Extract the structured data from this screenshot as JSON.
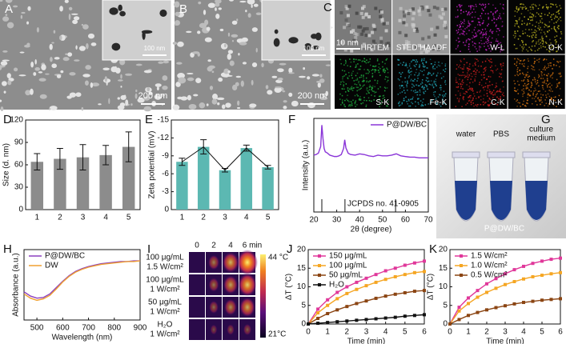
{
  "chart_data": [
    {
      "type": "bar",
      "panel": "D",
      "ylabel": "Size (d. nm)",
      "categories": [
        "1",
        "2",
        "3",
        "4",
        "5"
      ],
      "values": [
        64,
        68,
        70,
        73,
        84
      ],
      "errors": [
        11,
        14,
        17,
        13,
        20
      ],
      "color": "#8c8c8c",
      "ylim": [
        0,
        120
      ],
      "yticks": [
        0,
        30,
        60,
        90,
        120
      ]
    },
    {
      "type": "bar",
      "panel": "E",
      "ylabel": "Zeta potential (mV)",
      "categories": [
        "1",
        "2",
        "3",
        "4",
        "5"
      ],
      "values": [
        -8.0,
        -10.5,
        -6.6,
        -10.3,
        -7.1
      ],
      "errors": [
        0.6,
        1.2,
        0.3,
        0.5,
        0.3
      ],
      "color": "#5cb8b2",
      "connect": true,
      "ylim": [
        0,
        -15
      ],
      "yticks": [
        0,
        -3,
        -6,
        -9,
        -12,
        -15
      ]
    },
    {
      "type": "line",
      "panel": "F",
      "ylabel": "Intensity (a.u.)",
      "xlabel": "2θ (degree)",
      "x": [
        20,
        21,
        22,
        23,
        23.5,
        24,
        24.5,
        25,
        26,
        27,
        28,
        29,
        30,
        31,
        32,
        33,
        33.5,
        34,
        35,
        36,
        38,
        40,
        42,
        44,
        46,
        48,
        50,
        52,
        54,
        56,
        58,
        60,
        62,
        64,
        66,
        68,
        70
      ],
      "series": [
        {
          "name": "P@DW/BC",
          "color": "#8a35d8",
          "values": [
            45,
            46,
            48,
            58,
            90,
            70,
            55,
            50,
            48,
            45,
            44,
            43,
            43,
            44,
            46,
            55,
            68,
            56,
            48,
            46,
            45,
            47,
            46,
            44,
            43,
            45,
            44,
            44,
            45,
            47,
            44,
            43,
            42,
            42,
            41,
            41,
            41
          ]
        }
      ],
      "reference": {
        "label": "JCPDS no. 41-0905",
        "x": [
          23.5,
          33.6,
          55.7
        ]
      },
      "xlim": [
        20,
        70
      ],
      "xticks": [
        20,
        30,
        40,
        50,
        60,
        70
      ],
      "ylim": [
        -40,
        100
      ]
    },
    {
      "type": "line",
      "panel": "H",
      "ylabel": "Absorbance (a.u.)",
      "xlabel": "Wavelength (nm)",
      "x": [
        450,
        475,
        500,
        525,
        550,
        575,
        600,
        625,
        650,
        675,
        700,
        725,
        750,
        775,
        800,
        825,
        850,
        875,
        900
      ],
      "series": [
        {
          "name": "P@DW/BC",
          "color": "#8b3fbf",
          "values": [
            40,
            34,
            31,
            32,
            37,
            46,
            55,
            63,
            69,
            73,
            76,
            78,
            80,
            81,
            82,
            83,
            83,
            84,
            84
          ]
        },
        {
          "name": "DW",
          "color": "#f0a030",
          "values": [
            37,
            31,
            28,
            30,
            35,
            44,
            54,
            62,
            68,
            72,
            75,
            77,
            79,
            80,
            81,
            82,
            83,
            83,
            84
          ]
        }
      ],
      "xlim": [
        450,
        900
      ],
      "xticks": [
        500,
        600,
        700,
        800,
        900
      ],
      "ylim": [
        0,
        100
      ]
    },
    {
      "type": "line",
      "panel": "J",
      "ylabel": "ΔT (°C)",
      "xlabel": "Time (min)",
      "markers": true,
      "x": [
        0,
        0.5,
        1,
        1.5,
        2,
        2.5,
        3,
        3.5,
        4,
        4.5,
        5,
        5.5,
        6
      ],
      "series": [
        {
          "name": "150 μg/mL",
          "color": "#e0389a",
          "values": [
            0,
            4,
            6.5,
            8.5,
            10,
            11.2,
            12.3,
            13.3,
            14.3,
            15,
            15.8,
            16.4,
            16.9
          ]
        },
        {
          "name": "100 μg/mL",
          "color": "#f5a623",
          "values": [
            0,
            3,
            5,
            6.8,
            8.2,
            9.3,
            10.3,
            11.2,
            12,
            12.7,
            13.3,
            13.8,
            14.1
          ]
        },
        {
          "name": "50 μg/mL",
          "color": "#8b4513",
          "values": [
            0,
            1.5,
            2.8,
            3.8,
            4.7,
            5.5,
            6.2,
            6.9,
            7.5,
            8,
            8.4,
            8.8,
            9
          ]
        },
        {
          "name": "H₂O",
          "color": "#111111",
          "values": [
            0,
            0.2,
            0.4,
            0.6,
            0.8,
            1,
            1.2,
            1.4,
            1.6,
            1.8,
            2.1,
            2.3,
            2.5
          ]
        }
      ],
      "xlim": [
        0,
        6
      ],
      "xticks": [
        0,
        1,
        2,
        3,
        4,
        5,
        6
      ],
      "ylim": [
        0,
        20
      ],
      "yticks": [
        0,
        5,
        10,
        15,
        20
      ]
    },
    {
      "type": "line",
      "panel": "K",
      "ylabel": "ΔT (°C)",
      "xlabel": "Time (min)",
      "markers": true,
      "x": [
        0,
        0.5,
        1,
        1.5,
        2,
        2.5,
        3,
        3.5,
        4,
        4.5,
        5,
        5.5,
        6
      ],
      "series": [
        {
          "name": "1.5 W/cm²",
          "color": "#e0389a",
          "values": [
            0,
            4.5,
            7,
            9,
            10.8,
            12.2,
            13.5,
            14.6,
            15.5,
            16.3,
            16.9,
            17.4,
            17.7
          ]
        },
        {
          "name": "1.0 W/cm²",
          "color": "#f5a623",
          "values": [
            0,
            3.5,
            5.5,
            7.2,
            8.5,
            9.6,
            10.6,
            11.4,
            12.1,
            12.7,
            13.1,
            13.5,
            13.8
          ]
        },
        {
          "name": "0.5 W/cm²",
          "color": "#8b4513",
          "values": [
            0,
            1.2,
            2.3,
            3.1,
            3.8,
            4.4,
            4.9,
            5.4,
            5.8,
            6.1,
            6.4,
            6.6,
            6.8
          ]
        }
      ],
      "xlim": [
        0,
        6
      ],
      "xticks": [
        0,
        1,
        2,
        3,
        4,
        5,
        6
      ],
      "ylim": [
        0,
        20
      ],
      "yticks": [
        0,
        5,
        10,
        15,
        20
      ]
    }
  ],
  "panels": {
    "A": {
      "label": "A",
      "inset_scale": "100 nm",
      "scale": "200 nm"
    },
    "B": {
      "label": "B",
      "inset_scale": "100 nm",
      "scale": "200 nm"
    },
    "C": {
      "label": "C",
      "scale": "10 nm",
      "tiles": [
        {
          "name": "HRTEM",
          "color": "#7a7a7a"
        },
        {
          "name": "STED HAADF",
          "color": "#9a9a9a"
        },
        {
          "name": "W-L",
          "color": "#c020c0"
        },
        {
          "name": "O-K",
          "color": "#b8b020"
        },
        {
          "name": "S-K",
          "color": "#20b040"
        },
        {
          "name": "Fe-K",
          "color": "#20a0b0"
        },
        {
          "name": "C-K",
          "color": "#d02020"
        },
        {
          "name": "N-K",
          "color": "#d07010"
        }
      ]
    },
    "G": {
      "label": "G",
      "tubes": [
        [
          "water"
        ],
        [
          "PBS"
        ],
        [
          "culture",
          "medium"
        ]
      ],
      "caption": "P@DW/BC"
    },
    "I": {
      "label": "I",
      "columns": [
        "0",
        "2",
        "4",
        "6 min"
      ],
      "rows": [
        [
          "100 μg/mL",
          "1.5 W/cm²"
        ],
        [
          "100 μg/mL",
          "1 W/cm²"
        ],
        [
          "50 μg/mL",
          "1 W/cm²"
        ],
        [
          "H₂O",
          "1 W/cm²"
        ]
      ],
      "colorbar_max": "44 °C",
      "colorbar_min": "21°C"
    }
  }
}
